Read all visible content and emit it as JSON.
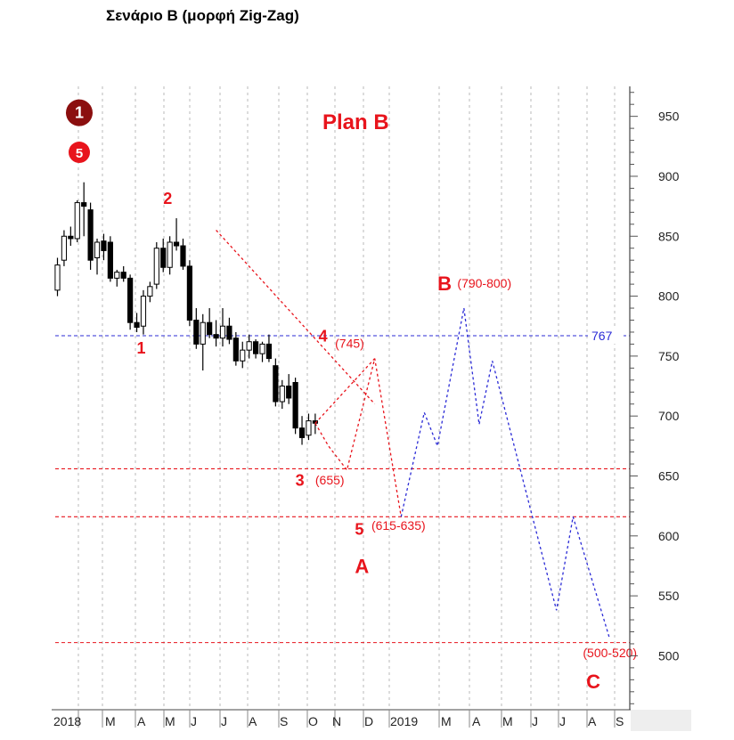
{
  "title": "Σενάριο B (μορφή Zig-Zag)",
  "chart_data": {
    "type": "candlestick",
    "plan_label": "Plan B",
    "ylim": [
      455,
      975
    ],
    "y_ticks": [
      500,
      550,
      600,
      650,
      700,
      750,
      800,
      850,
      900,
      950
    ],
    "x_tick_labels": [
      "2018",
      "M",
      "A",
      "M",
      "J",
      "J",
      "A",
      "S",
      "O",
      "N",
      "D",
      "2019",
      "M",
      "A",
      "M",
      "J",
      "J",
      "A",
      "S"
    ],
    "grid": "vertical dotted",
    "colors": {
      "red": "#e8141c",
      "blue": "#2b2bd6",
      "bull": "#ffffff",
      "bear": "#000000"
    },
    "candles": [
      {
        "o": 805,
        "h": 832,
        "l": 800,
        "c": 826
      },
      {
        "o": 830,
        "h": 855,
        "l": 825,
        "c": 850
      },
      {
        "o": 850,
        "h": 858,
        "l": 842,
        "c": 848
      },
      {
        "o": 848,
        "h": 880,
        "l": 845,
        "c": 878
      },
      {
        "o": 878,
        "h": 895,
        "l": 850,
        "c": 875
      },
      {
        "o": 872,
        "h": 878,
        "l": 822,
        "c": 830
      },
      {
        "o": 832,
        "h": 848,
        "l": 818,
        "c": 845
      },
      {
        "o": 846,
        "h": 852,
        "l": 830,
        "c": 838
      },
      {
        "o": 845,
        "h": 850,
        "l": 812,
        "c": 815
      },
      {
        "o": 815,
        "h": 822,
        "l": 808,
        "c": 820
      },
      {
        "o": 820,
        "h": 825,
        "l": 812,
        "c": 815
      },
      {
        "o": 815,
        "h": 818,
        "l": 772,
        "c": 778
      },
      {
        "o": 778,
        "h": 786,
        "l": 770,
        "c": 774
      },
      {
        "o": 775,
        "h": 805,
        "l": 768,
        "c": 800
      },
      {
        "o": 800,
        "h": 812,
        "l": 795,
        "c": 808
      },
      {
        "o": 810,
        "h": 845,
        "l": 806,
        "c": 840
      },
      {
        "o": 840,
        "h": 848,
        "l": 820,
        "c": 824
      },
      {
        "o": 824,
        "h": 850,
        "l": 818,
        "c": 845
      },
      {
        "o": 845,
        "h": 865,
        "l": 838,
        "c": 842
      },
      {
        "o": 842,
        "h": 848,
        "l": 822,
        "c": 825
      },
      {
        "o": 825,
        "h": 830,
        "l": 775,
        "c": 780
      },
      {
        "o": 780,
        "h": 790,
        "l": 756,
        "c": 760
      },
      {
        "o": 760,
        "h": 785,
        "l": 738,
        "c": 778
      },
      {
        "o": 778,
        "h": 790,
        "l": 765,
        "c": 768
      },
      {
        "o": 768,
        "h": 780,
        "l": 758,
        "c": 765
      },
      {
        "o": 765,
        "h": 790,
        "l": 758,
        "c": 775
      },
      {
        "o": 775,
        "h": 782,
        "l": 760,
        "c": 764
      },
      {
        "o": 765,
        "h": 770,
        "l": 742,
        "c": 746
      },
      {
        "o": 746,
        "h": 762,
        "l": 740,
        "c": 755
      },
      {
        "o": 755,
        "h": 768,
        "l": 748,
        "c": 762
      },
      {
        "o": 762,
        "h": 764,
        "l": 748,
        "c": 752
      },
      {
        "o": 752,
        "h": 762,
        "l": 745,
        "c": 760
      },
      {
        "o": 760,
        "h": 768,
        "l": 745,
        "c": 748
      },
      {
        "o": 742,
        "h": 748,
        "l": 708,
        "c": 712
      },
      {
        "o": 712,
        "h": 730,
        "l": 706,
        "c": 725
      },
      {
        "o": 725,
        "h": 735,
        "l": 710,
        "c": 715
      },
      {
        "o": 728,
        "h": 732,
        "l": 685,
        "c": 690
      },
      {
        "o": 690,
        "h": 700,
        "l": 676,
        "c": 682
      },
      {
        "o": 684,
        "h": 702,
        "l": 680,
        "c": 696
      },
      {
        "o": 696,
        "h": 702,
        "l": 685,
        "c": 694
      }
    ],
    "horizontal_levels": [
      {
        "value": 767,
        "color": "blue",
        "label": "767"
      },
      {
        "value": 656,
        "color": "red"
      },
      {
        "value": 616,
        "color": "red"
      },
      {
        "value": 511,
        "color": "red"
      }
    ],
    "wave_paths": [
      {
        "name": "red-wave-1-2",
        "color": "red",
        "points": [
          {
            "t": 24.0,
            "v": 855
          },
          {
            "t": 48.0,
            "v": 710
          }
        ]
      },
      {
        "name": "red-wave-3-5",
        "color": "red",
        "points": [
          {
            "t": 39.0,
            "v": 694
          },
          {
            "t": 41.0,
            "v": 675
          },
          {
            "t": 43.8,
            "v": 655
          },
          {
            "t": 48.0,
            "v": 748
          },
          {
            "t": 52.0,
            "v": 616
          }
        ]
      },
      {
        "name": "red-wave-to-4",
        "color": "red",
        "points": [
          {
            "t": 39.0,
            "v": 694
          },
          {
            "t": 48.0,
            "v": 748
          }
        ]
      },
      {
        "name": "blue-projection",
        "color": "blue",
        "points": [
          {
            "t": 52.0,
            "v": 616
          },
          {
            "t": 55.5,
            "v": 703
          },
          {
            "t": 57.5,
            "v": 675
          },
          {
            "t": 61.5,
            "v": 790
          },
          {
            "t": 63.8,
            "v": 693
          },
          {
            "t": 65.8,
            "v": 746
          },
          {
            "t": 75.5,
            "v": 538
          },
          {
            "t": 78.0,
            "v": 616
          },
          {
            "t": 83.5,
            "v": 515
          }
        ]
      }
    ],
    "annotations": [
      {
        "text": "1",
        "kind": "wave-num",
        "t": 12.0,
        "v": 752
      },
      {
        "text": "2",
        "kind": "wave-num",
        "t": 16.0,
        "v": 877
      },
      {
        "text": "3",
        "kind": "wave-num",
        "t": 36.0,
        "v": 642
      },
      {
        "text": "(655)",
        "kind": "range",
        "t": 39.0,
        "v": 643
      },
      {
        "text": "4",
        "kind": "wave-num",
        "t": 39.5,
        "v": 762
      },
      {
        "text": "(745)",
        "kind": "range",
        "t": 42.0,
        "v": 757
      },
      {
        "text": "5",
        "kind": "wave-num",
        "t": 45.0,
        "v": 601
      },
      {
        "text": "(615-635)",
        "kind": "range",
        "t": 47.5,
        "v": 605
      },
      {
        "text": "A",
        "kind": "wave-letter",
        "t": 45.0,
        "v": 569
      },
      {
        "text": "B",
        "kind": "wave-letter",
        "t": 57.5,
        "v": 805
      },
      {
        "text": "(790-800)",
        "kind": "range",
        "t": 60.5,
        "v": 807
      },
      {
        "text": "(500-520)",
        "kind": "range",
        "t": 79.5,
        "v": 499
      },
      {
        "text": "C",
        "kind": "wave-letter",
        "t": 80.0,
        "v": 473
      }
    ],
    "markers": [
      {
        "text": "1",
        "style": "dark-circle",
        "t": 3.3,
        "v": 953
      },
      {
        "text": "5",
        "style": "red-circle",
        "t": 3.3,
        "v": 920
      }
    ]
  }
}
